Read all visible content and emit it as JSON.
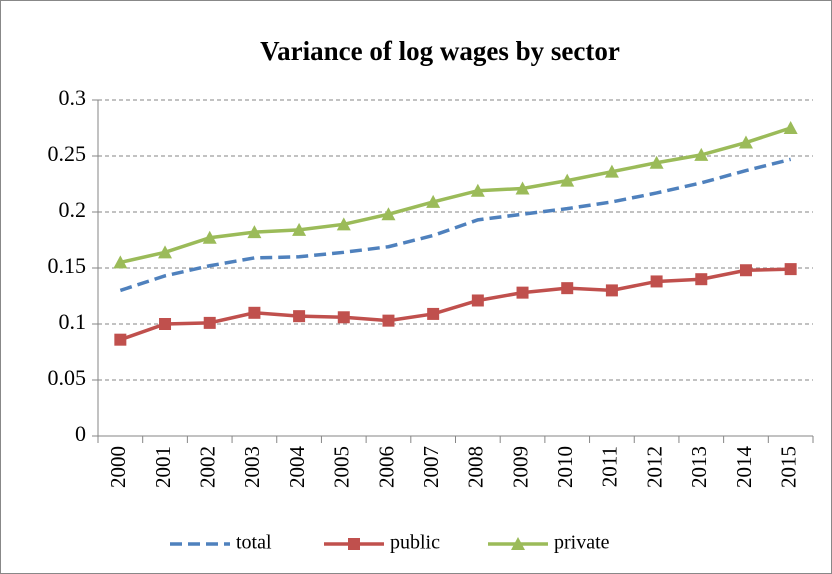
{
  "chart_data": {
    "type": "line",
    "title": "Variance of log wages by sector",
    "categories": [
      "2000",
      "2001",
      "2002",
      "2003",
      "2004",
      "2005",
      "2006",
      "2007",
      "2008",
      "2009",
      "2010",
      "2011",
      "2012",
      "2013",
      "2014",
      "2015"
    ],
    "series": [
      {
        "name": "total",
        "color": "#4f81bd",
        "line_style": "dashed",
        "marker": null,
        "values": [
          0.13,
          0.143,
          0.152,
          0.159,
          0.16,
          0.164,
          0.169,
          0.179,
          0.193,
          0.198,
          0.203,
          0.209,
          0.217,
          0.226,
          0.237,
          0.247
        ]
      },
      {
        "name": "public",
        "color": "#c0504d",
        "line_style": "solid",
        "marker": "square",
        "values": [
          0.086,
          0.1,
          0.101,
          0.11,
          0.107,
          0.106,
          0.103,
          0.109,
          0.121,
          0.128,
          0.132,
          0.13,
          0.138,
          0.14,
          0.148,
          0.149
        ]
      },
      {
        "name": "private",
        "color": "#9bbb59",
        "line_style": "solid",
        "marker": "triangle",
        "values": [
          0.155,
          0.164,
          0.177,
          0.182,
          0.184,
          0.189,
          0.198,
          0.209,
          0.219,
          0.221,
          0.228,
          0.236,
          0.244,
          0.251,
          0.262,
          0.275
        ]
      }
    ],
    "ylim": [
      0,
      0.3
    ],
    "yticks": [
      0,
      0.05,
      0.1,
      0.15,
      0.2,
      0.25,
      0.3
    ],
    "grid": true,
    "legend": "bottom"
  }
}
